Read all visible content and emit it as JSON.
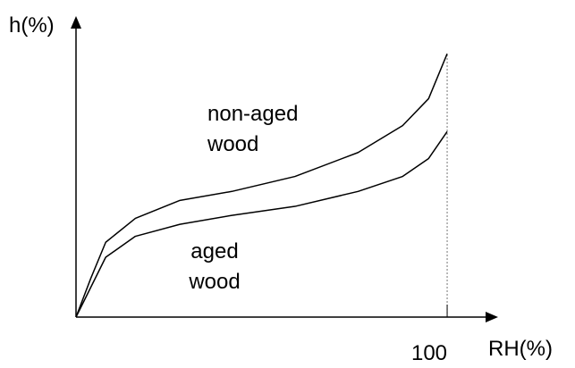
{
  "chart_data": {
    "type": "line",
    "ylabel": "h(%)",
    "xlabel": "RH(%)",
    "x": [
      0,
      4,
      8,
      16,
      28,
      42,
      59,
      76,
      88,
      95,
      100
    ],
    "series": [
      {
        "name": "non-aged wood",
        "color": "#000000",
        "values": [
          0,
          13,
          25,
          33,
          39,
          42,
          47,
          55,
          64,
          73,
          88
        ]
      },
      {
        "name": "aged wood",
        "color": "#000000",
        "values": [
          0,
          10,
          20,
          27,
          31,
          34,
          37,
          42,
          47,
          53,
          62
        ]
      }
    ],
    "xlim": [
      0,
      113
    ],
    "xticks": [
      100
    ],
    "ylim": [
      0,
      100
    ],
    "grid": false
  }
}
